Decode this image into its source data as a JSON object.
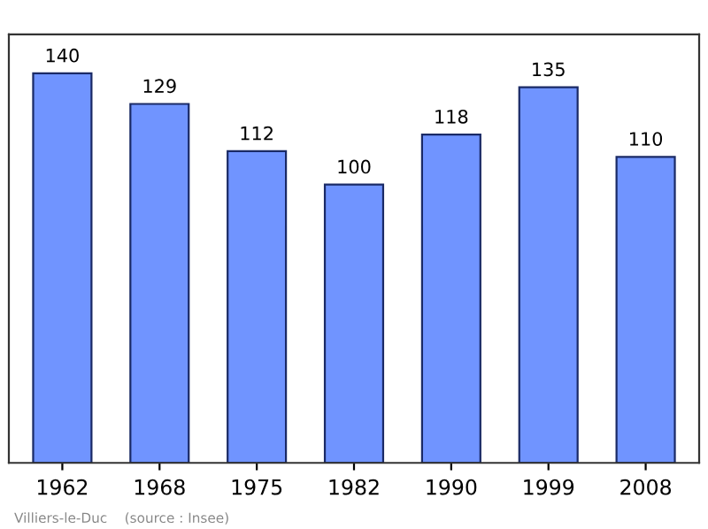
{
  "chart_data": {
    "type": "bar",
    "categories": [
      "1962",
      "1968",
      "1975",
      "1982",
      "1990",
      "1999",
      "2008"
    ],
    "values": [
      140,
      129,
      112,
      100,
      118,
      135,
      110
    ],
    "color": "#7094ff",
    "data_labels": true,
    "grid": false,
    "legend": false,
    "annotations": [
      "Villiers-le-Duc    (source : Insee)"
    ]
  }
}
